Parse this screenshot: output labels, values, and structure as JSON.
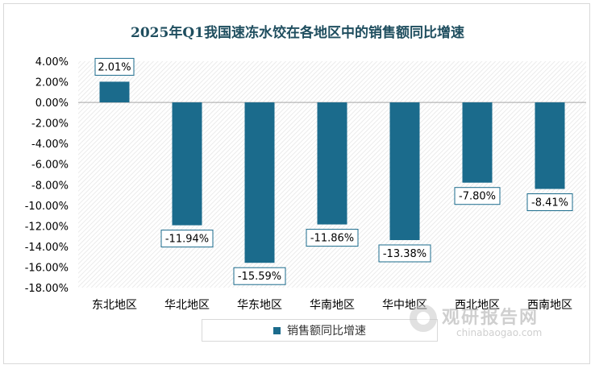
{
  "chart_data": {
    "type": "bar",
    "title": "2025年Q1我国速冻水饺在各地区中的销售额同比增速",
    "categories": [
      "东北地区",
      "华北地区",
      "华东地区",
      "华南地区",
      "华中地区",
      "西北地区",
      "西南地区"
    ],
    "series": [
      {
        "name": "销售额同比增速",
        "values": [
          2.01,
          -11.94,
          -15.59,
          -11.86,
          -13.38,
          -7.8,
          -8.41
        ]
      }
    ],
    "data_labels": [
      "2.01%",
      "-11.94%",
      "-15.59%",
      "-11.86%",
      "-13.38%",
      "-7.80%",
      "-8.41%"
    ],
    "yticks": [
      "4.00%",
      "2.00%",
      "0.00%",
      "-2.00%",
      "-4.00%",
      "-6.00%",
      "-8.00%",
      "-10.00%",
      "-12.00%",
      "-14.00%",
      "-16.00%",
      "-18.00%"
    ],
    "ylim": [
      -18,
      4
    ],
    "bar_color": "#1b6b8c",
    "grid": false,
    "legend_position": "bottom"
  },
  "watermark": {
    "text_cn": "观研报告网",
    "text_en": "chinabaogao.com"
  }
}
